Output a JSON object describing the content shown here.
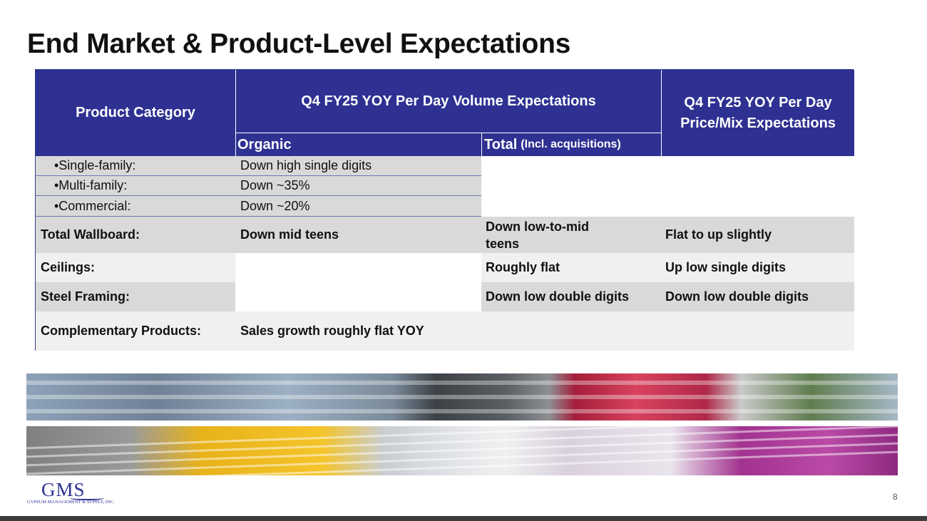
{
  "title": "End Market & Product-Level Expectations",
  "table": {
    "headers": {
      "product_category": "Product Category",
      "volume": "Q4 FY25 YOY Per Day Volume Expectations",
      "price_mix": "Q4 FY25 YOY Per Day Price/Mix Expectations",
      "organic": "Organic",
      "total": "Total",
      "total_note": "(Incl. acquisitions)"
    },
    "sub_rows": [
      {
        "category": "•Single-family:",
        "organic": "Down high single digits"
      },
      {
        "category": "•Multi-family:",
        "organic": "Down ~35%"
      },
      {
        "category": "•Commercial:",
        "organic": "Down ~20%"
      }
    ],
    "rows": [
      {
        "category": "Total Wallboard:",
        "organic": "Down mid teens",
        "total": "Down low-to-mid teens",
        "price": "Flat to up slightly"
      },
      {
        "category": "Ceilings:",
        "organic": "",
        "total": "Roughly flat",
        "price": "Up low single digits"
      },
      {
        "category": "Steel Framing:",
        "organic": "",
        "total": "Down low double digits",
        "price": "Down low double digits"
      },
      {
        "category": "Complementary Products:",
        "organic": "Sales growth roughly flat YOY",
        "total": "",
        "price": ""
      }
    ]
  },
  "logo": {
    "name": "GMS",
    "subtitle": "GYPSUM MANAGEMENT & SUPPLY, INC."
  },
  "page_number": "8"
}
